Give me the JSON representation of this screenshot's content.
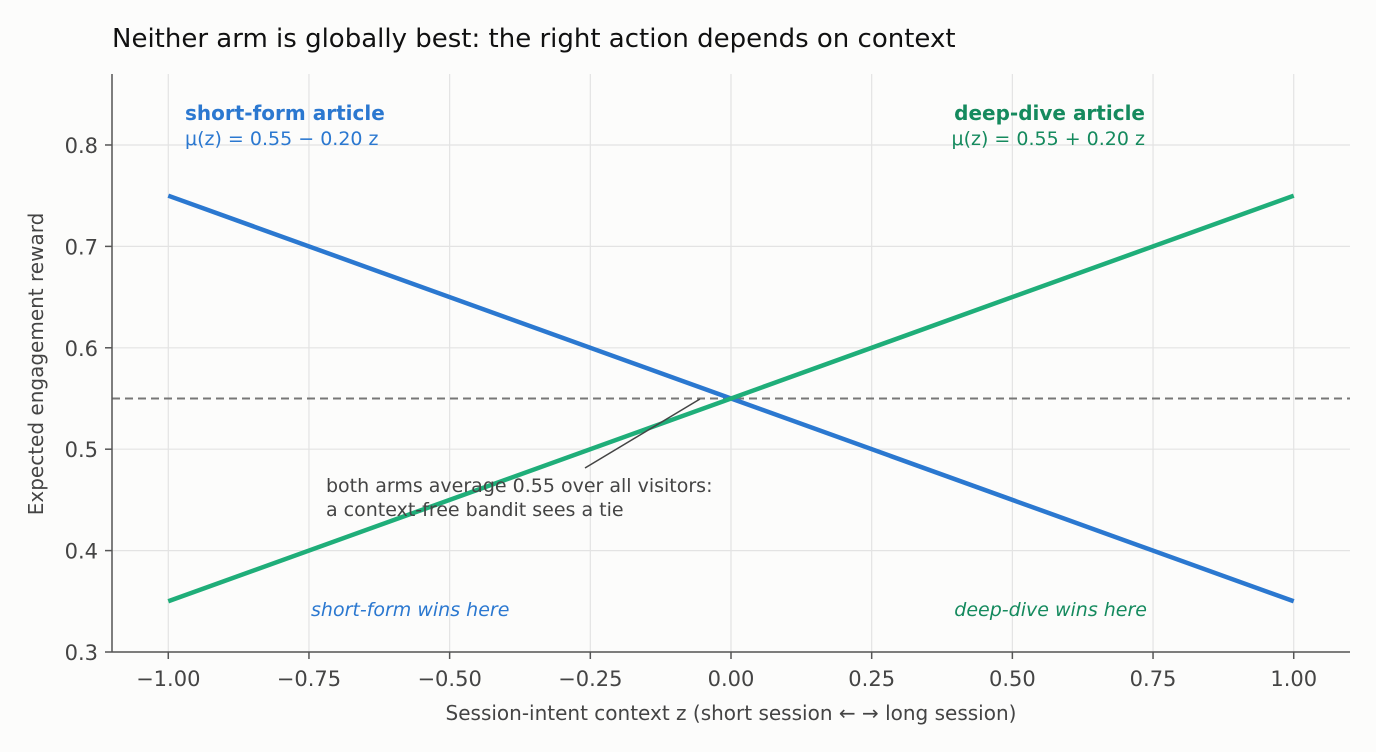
{
  "chart_data": {
    "type": "line",
    "title": "Neither arm is globally best: the right action depends on context",
    "xlabel": "Session-intent context  z  (short session ← → long session)",
    "ylabel": "Expected engagement reward",
    "xlim": [
      -1.1,
      1.1
    ],
    "ylim": [
      0.3,
      0.87
    ],
    "x_ticks": [
      -1.0,
      -0.75,
      -0.5,
      -0.25,
      0.0,
      0.25,
      0.5,
      0.75,
      1.0
    ],
    "x_tick_labels": [
      "−1.00",
      "−0.75",
      "−0.50",
      "−0.25",
      "0.00",
      "0.25",
      "0.50",
      "0.75",
      "1.00"
    ],
    "y_ticks": [
      0.3,
      0.4,
      0.5,
      0.6,
      0.7,
      0.8
    ],
    "y_tick_labels": [
      "0.3",
      "0.4",
      "0.5",
      "0.6",
      "0.7",
      "0.8"
    ],
    "grid": true,
    "series": [
      {
        "name": "short-form article",
        "formula": "μ(z) = 0.55 − 0.20 z",
        "color": "#2b78d0",
        "label_color": "#2b78d0",
        "x": [
          -1.0,
          1.0
        ],
        "y": [
          0.75,
          0.35
        ]
      },
      {
        "name": "deep-dive article",
        "formula": "μ(z) = 0.55 + 0.20 z",
        "color": "#1fae79",
        "label_color": "#158a5e",
        "x": [
          -1.0,
          1.0
        ],
        "y": [
          0.35,
          0.75
        ]
      }
    ],
    "reference_line": {
      "y": 0.55,
      "style": "dashed",
      "color": "#777777"
    },
    "annotations": {
      "tie_note": [
        "both arms average 0.55 over all visitors:",
        "a context-free bandit sees a tie"
      ],
      "short_wins": "short-form wins here",
      "deep_wins": "deep-dive wins here"
    }
  }
}
